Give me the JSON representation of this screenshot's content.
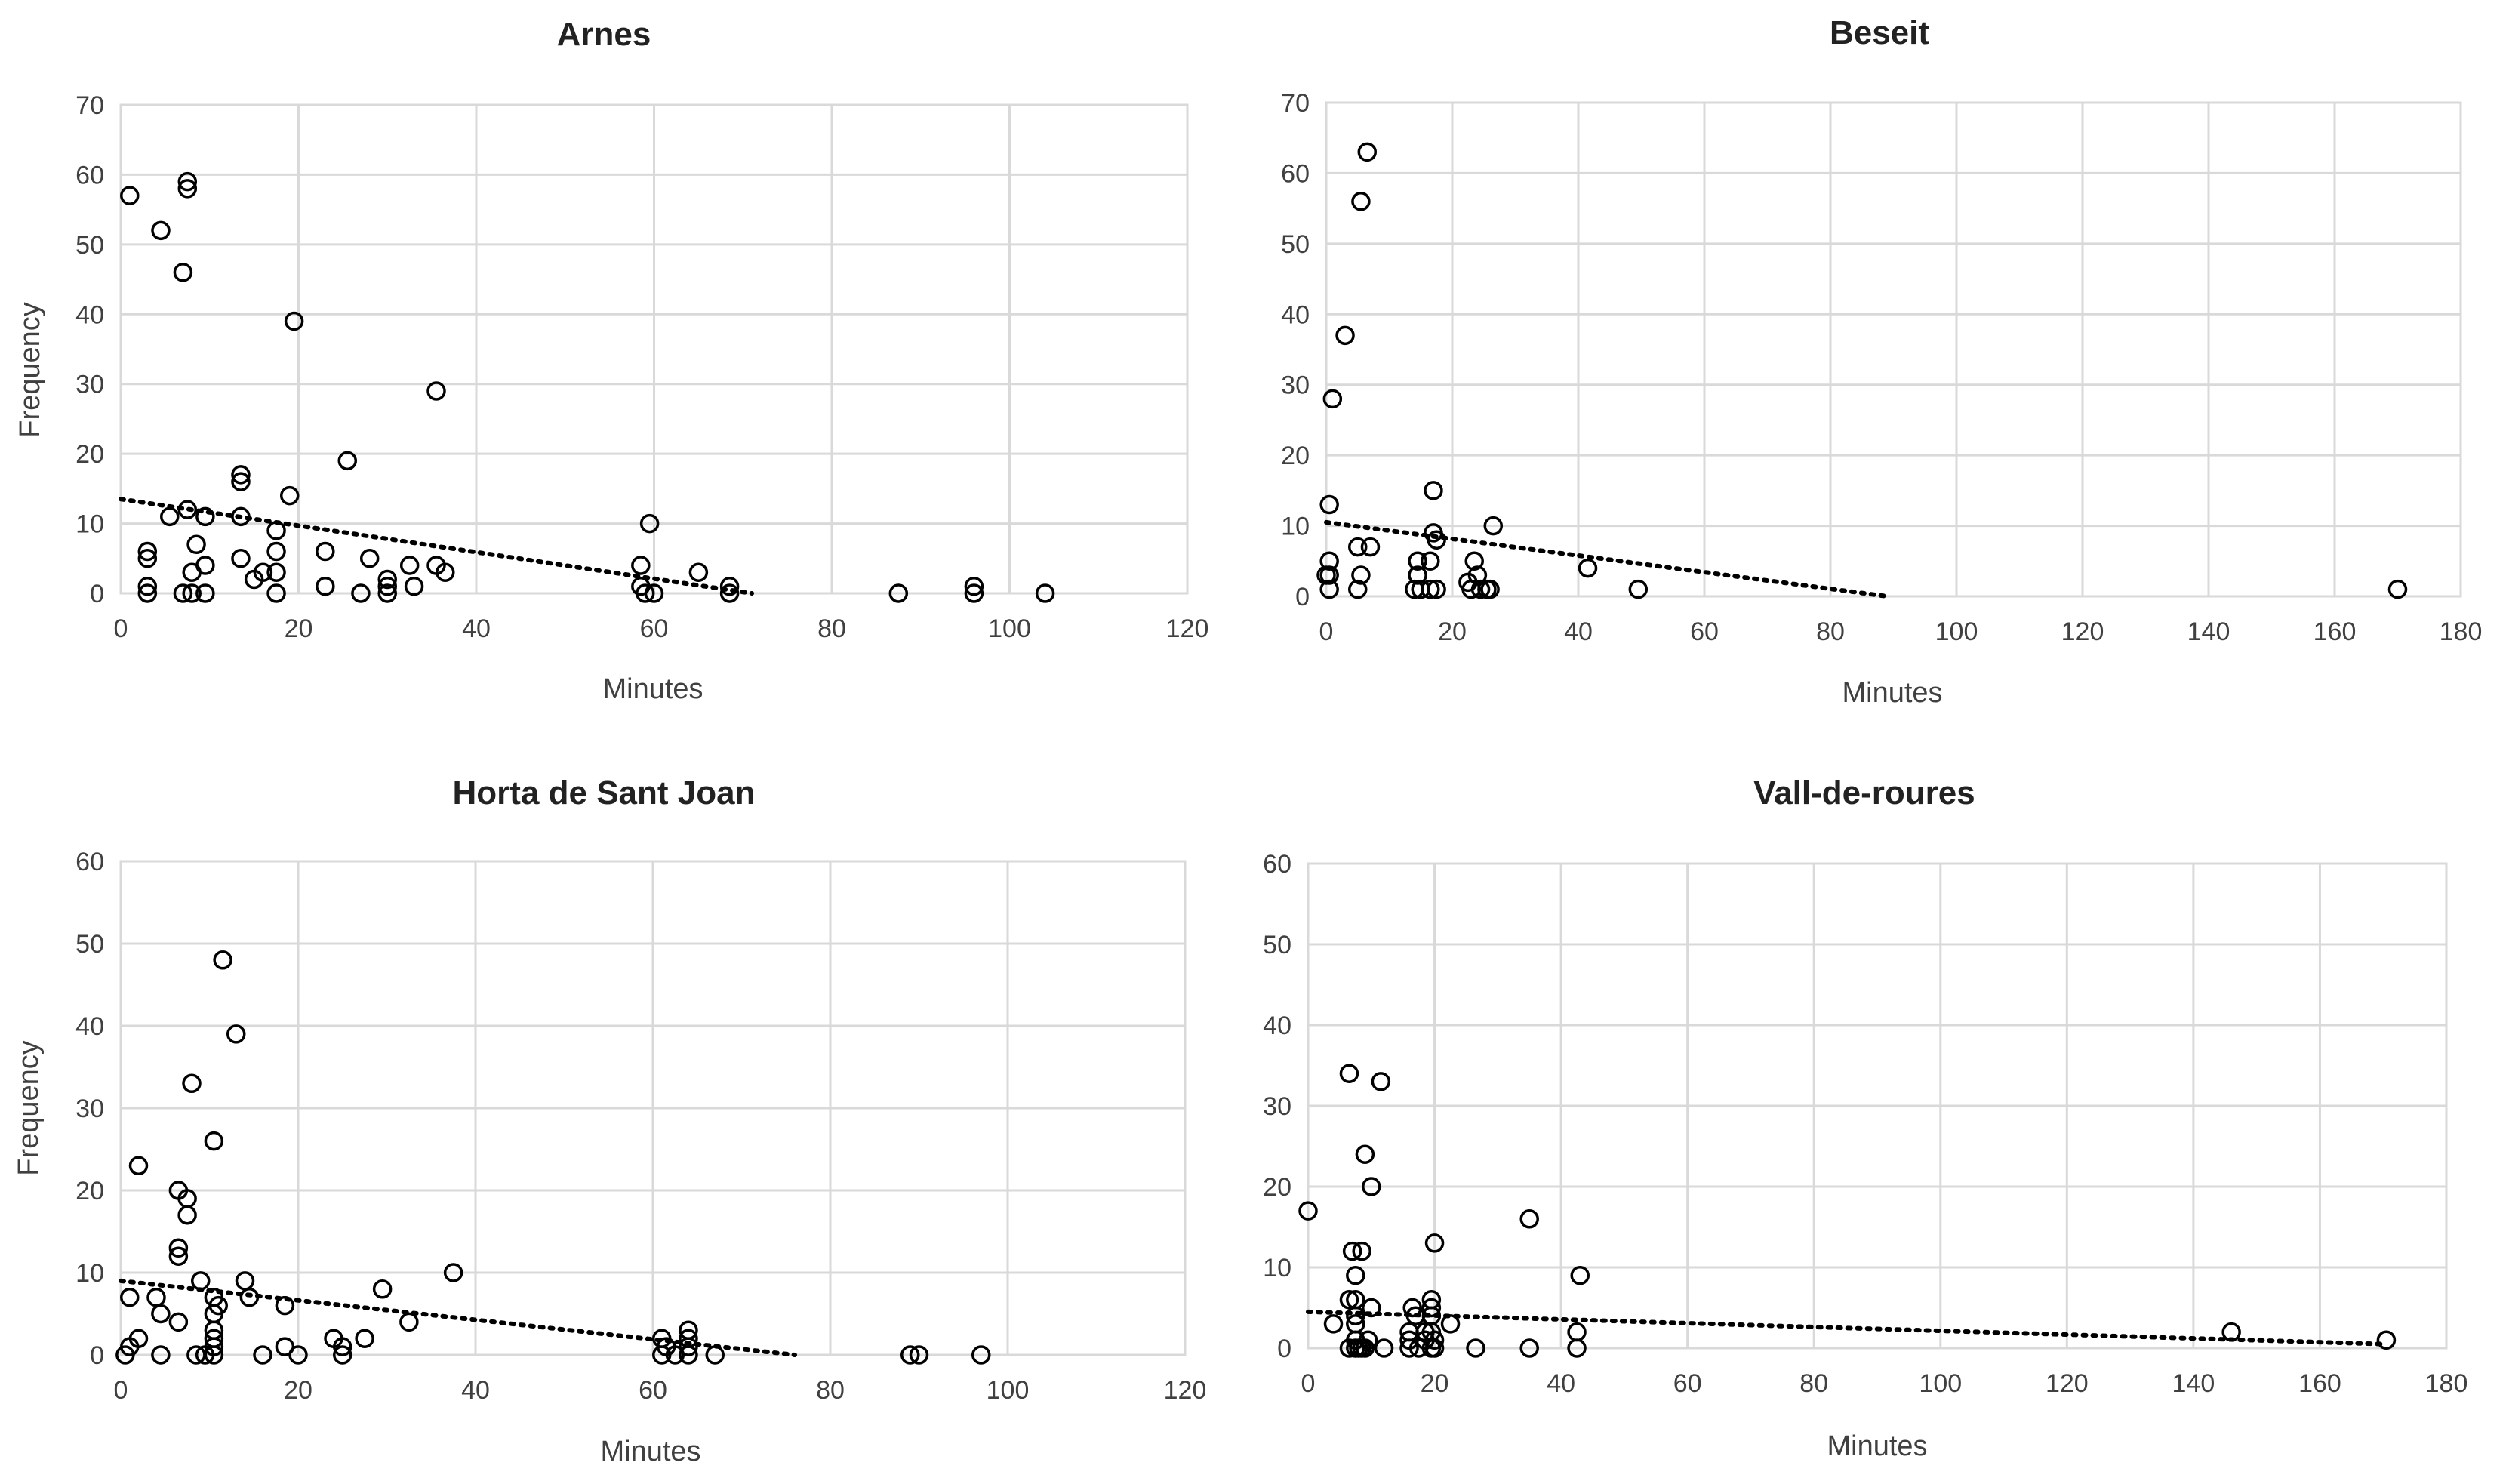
{
  "chart_data": [
    {
      "type": "scatter",
      "title": "Arnes",
      "xlabel": "Minutes",
      "ylabel": "Frequency",
      "xlim": [
        0,
        120
      ],
      "ylim": [
        0,
        70
      ],
      "xticks": [
        0,
        20,
        40,
        60,
        80,
        100,
        120
      ],
      "yticks": [
        0,
        10,
        20,
        30,
        40,
        50,
        60,
        70
      ],
      "grid": true,
      "trendline": {
        "style": "dotted",
        "from": [
          0,
          13.5
        ],
        "to": [
          71,
          0
        ]
      },
      "points": [
        [
          1,
          57
        ],
        [
          4.5,
          52
        ],
        [
          7.5,
          59
        ],
        [
          7.5,
          58
        ],
        [
          7,
          46
        ],
        [
          19.5,
          39
        ],
        [
          35.5,
          29
        ],
        [
          25.5,
          19
        ],
        [
          13.5,
          17
        ],
        [
          13.5,
          16
        ],
        [
          19,
          14
        ],
        [
          7.5,
          12
        ],
        [
          5.5,
          11
        ],
        [
          9.5,
          11
        ],
        [
          13.5,
          11
        ],
        [
          17.5,
          9
        ],
        [
          59.5,
          10
        ],
        [
          8.5,
          7
        ],
        [
          3,
          6
        ],
        [
          3,
          5
        ],
        [
          13.5,
          5
        ],
        [
          17.5,
          6
        ],
        [
          23,
          6
        ],
        [
          28,
          5
        ],
        [
          9.5,
          4
        ],
        [
          8,
          3
        ],
        [
          15,
          2
        ],
        [
          16,
          3
        ],
        [
          17.5,
          3
        ],
        [
          32.5,
          4
        ],
        [
          35.5,
          4
        ],
        [
          36.5,
          3
        ],
        [
          58.5,
          4
        ],
        [
          65,
          3
        ],
        [
          30,
          2
        ],
        [
          3,
          1
        ],
        [
          3,
          0
        ],
        [
          7,
          0
        ],
        [
          8,
          0
        ],
        [
          9.5,
          0
        ],
        [
          17.5,
          0
        ],
        [
          23,
          1
        ],
        [
          27,
          0
        ],
        [
          30,
          0
        ],
        [
          30,
          1
        ],
        [
          33,
          1
        ],
        [
          58.5,
          1
        ],
        [
          59,
          0
        ],
        [
          60,
          0
        ],
        [
          68.5,
          1
        ],
        [
          68.5,
          0
        ],
        [
          87.5,
          0
        ],
        [
          96,
          1
        ],
        [
          96,
          0
        ],
        [
          104,
          0
        ]
      ]
    },
    {
      "type": "scatter",
      "title": "Beseit",
      "xlabel": "Minutes",
      "ylabel": "",
      "xlim": [
        0,
        180
      ],
      "ylim": [
        0,
        70
      ],
      "xticks": [
        0,
        20,
        40,
        60,
        80,
        100,
        120,
        140,
        160,
        180
      ],
      "yticks": [
        0,
        10,
        20,
        30,
        40,
        50,
        60,
        70
      ],
      "grid": true,
      "trendline": {
        "style": "dotted",
        "from": [
          0,
          10.5
        ],
        "to": [
          89,
          0
        ]
      },
      "points": [
        [
          6.5,
          63
        ],
        [
          5.5,
          56
        ],
        [
          3,
          37
        ],
        [
          1,
          28
        ],
        [
          0.5,
          13
        ],
        [
          17,
          15
        ],
        [
          26.5,
          10
        ],
        [
          17,
          9
        ],
        [
          17.5,
          8
        ],
        [
          5,
          7
        ],
        [
          7,
          7
        ],
        [
          0.5,
          5
        ],
        [
          14.5,
          5
        ],
        [
          16.5,
          5
        ],
        [
          23.5,
          5
        ],
        [
          41.5,
          4
        ],
        [
          0,
          3
        ],
        [
          0.5,
          3
        ],
        [
          5.5,
          3
        ],
        [
          14.5,
          3
        ],
        [
          22.5,
          2
        ],
        [
          24,
          3
        ],
        [
          0.5,
          1
        ],
        [
          5,
          1
        ],
        [
          14,
          1
        ],
        [
          15,
          1
        ],
        [
          16.5,
          1
        ],
        [
          17.5,
          1
        ],
        [
          23,
          1
        ],
        [
          24.5,
          1
        ],
        [
          25.5,
          1
        ],
        [
          26,
          1
        ],
        [
          49.5,
          1
        ],
        [
          170,
          1
        ]
      ]
    },
    {
      "type": "scatter",
      "title": "Horta de Sant Joan",
      "xlabel": "Minutes",
      "ylabel": "Frequency",
      "xlim": [
        0,
        120
      ],
      "ylim": [
        0,
        60
      ],
      "xticks": [
        0,
        20,
        40,
        60,
        80,
        100,
        120
      ],
      "yticks": [
        0,
        10,
        20,
        30,
        40,
        50,
        60
      ],
      "grid": true,
      "trendline": {
        "style": "dotted",
        "from": [
          0,
          9
        ],
        "to": [
          76,
          0
        ]
      },
      "points": [
        [
          11.5,
          48
        ],
        [
          13,
          39
        ],
        [
          8,
          33
        ],
        [
          10.5,
          26
        ],
        [
          2,
          23
        ],
        [
          6.5,
          20
        ],
        [
          7.5,
          19
        ],
        [
          7.5,
          17
        ],
        [
          6.5,
          13
        ],
        [
          6.5,
          12
        ],
        [
          37.5,
          10
        ],
        [
          1,
          7
        ],
        [
          4,
          7
        ],
        [
          9,
          9
        ],
        [
          14,
          9
        ],
        [
          29.5,
          8
        ],
        [
          10.5,
          7
        ],
        [
          11,
          6
        ],
        [
          14.5,
          7
        ],
        [
          18.5,
          6
        ],
        [
          4.5,
          5
        ],
        [
          10.5,
          5
        ],
        [
          6.5,
          4
        ],
        [
          32.5,
          4
        ],
        [
          10.5,
          3
        ],
        [
          10.5,
          2
        ],
        [
          24,
          2
        ],
        [
          27.5,
          2
        ],
        [
          64,
          3
        ],
        [
          61,
          2
        ],
        [
          64,
          2
        ],
        [
          2,
          2
        ],
        [
          1,
          1
        ],
        [
          10.5,
          1
        ],
        [
          25,
          1
        ],
        [
          18.5,
          1
        ],
        [
          61.5,
          1
        ],
        [
          64,
          1
        ],
        [
          0.5,
          0
        ],
        [
          4.5,
          0
        ],
        [
          8.5,
          0
        ],
        [
          9.5,
          0
        ],
        [
          10.5,
          0
        ],
        [
          16,
          0
        ],
        [
          20,
          0
        ],
        [
          25,
          0
        ],
        [
          61,
          0
        ],
        [
          62.5,
          0
        ],
        [
          64,
          0
        ],
        [
          67,
          0
        ],
        [
          89,
          0
        ],
        [
          90,
          0
        ],
        [
          97,
          0
        ]
      ]
    },
    {
      "type": "scatter",
      "title": "Vall-de-roures",
      "xlabel": "Minutes",
      "ylabel": "",
      "xlim": [
        0,
        180
      ],
      "ylim": [
        0,
        60
      ],
      "xticks": [
        0,
        20,
        40,
        60,
        80,
        100,
        120,
        140,
        160,
        180
      ],
      "yticks": [
        0,
        10,
        20,
        30,
        40,
        50,
        60
      ],
      "grid": true,
      "trendline": {
        "style": "dotted",
        "from": [
          0,
          4.5
        ],
        "to": [
          170,
          0.5
        ]
      },
      "points": [
        [
          6.5,
          34
        ],
        [
          11.5,
          33
        ],
        [
          9,
          24
        ],
        [
          10,
          20
        ],
        [
          0,
          17
        ],
        [
          35,
          16
        ],
        [
          20,
          13
        ],
        [
          7,
          12
        ],
        [
          8.5,
          12
        ],
        [
          7.5,
          9
        ],
        [
          43,
          9
        ],
        [
          6.5,
          6
        ],
        [
          7.5,
          6
        ],
        [
          10,
          5
        ],
        [
          16.5,
          5
        ],
        [
          17,
          4
        ],
        [
          19.5,
          6
        ],
        [
          19.5,
          5
        ],
        [
          19.5,
          4
        ],
        [
          7.5,
          4
        ],
        [
          4,
          3
        ],
        [
          7.5,
          3
        ],
        [
          22.5,
          3
        ],
        [
          16,
          2
        ],
        [
          18.5,
          2
        ],
        [
          19.5,
          2
        ],
        [
          42.5,
          2
        ],
        [
          146,
          2
        ],
        [
          7.5,
          1
        ],
        [
          9.5,
          1
        ],
        [
          16,
          1
        ],
        [
          18.5,
          1
        ],
        [
          20,
          1
        ],
        [
          170.5,
          1
        ],
        [
          6.5,
          0
        ],
        [
          7.5,
          0
        ],
        [
          8,
          0
        ],
        [
          8.5,
          0
        ],
        [
          9,
          0
        ],
        [
          12,
          0
        ],
        [
          16,
          0
        ],
        [
          17.5,
          0
        ],
        [
          19.5,
          0
        ],
        [
          20,
          0
        ],
        [
          26.5,
          0
        ],
        [
          35,
          0
        ],
        [
          42.5,
          0
        ]
      ]
    }
  ]
}
